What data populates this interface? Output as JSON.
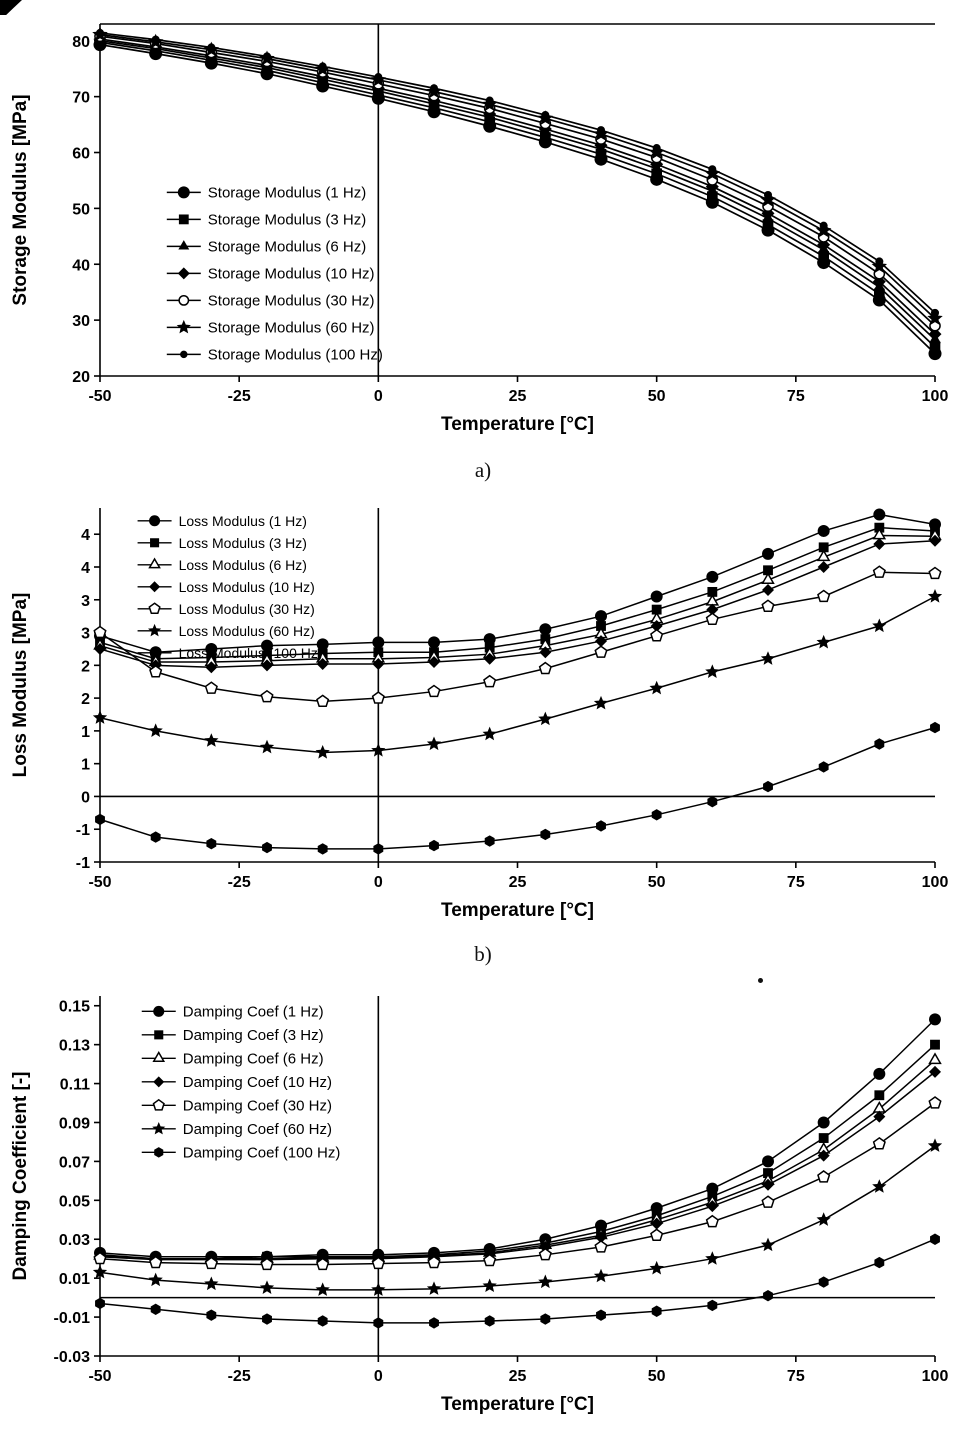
{
  "captions": {
    "a": "a)",
    "b": "b)"
  },
  "ink_color": "#000000",
  "background_color": "#ffffff",
  "chart_data": [
    {
      "id": "storage-modulus",
      "type": "line",
      "title": "",
      "xlabel": "Temperature [°C]",
      "ylabel": "Storage Modulus [MPa]",
      "xlim": [
        -50,
        100
      ],
      "ylim": [
        20,
        83
      ],
      "xticks": [
        -50,
        -25,
        0,
        25,
        50,
        75,
        100
      ],
      "yticks": {
        "values": [
          80,
          70,
          60,
          50,
          40,
          30,
          20
        ],
        "labels": [
          "80",
          "70",
          "60",
          "50",
          "40",
          "30",
          "20"
        ]
      },
      "grid": false,
      "box": "lbt",
      "legend": {
        "position": "center-left",
        "fx": 0.08,
        "fy": 0.44,
        "lh": 27,
        "fs": 15
      },
      "marker_size": 6.5,
      "line_width": 1.7,
      "x": [
        -50,
        -40,
        -30,
        -20,
        -10,
        0,
        10,
        20,
        30,
        40,
        50,
        60,
        70,
        80,
        90,
        100
      ],
      "series": [
        {
          "name": "Storage Modulus (1 Hz)",
          "marker": "circle",
          "values": [
            79.3,
            77.7,
            76.0,
            74.1,
            71.9,
            69.7,
            67.3,
            64.7,
            61.9,
            58.8,
            55.2,
            51.1,
            46.1,
            40.3,
            33.6,
            24.0
          ]
        },
        {
          "name": "Storage Modulus (3 Hz)",
          "marker": "square",
          "values": [
            79.7,
            78.2,
            76.5,
            74.7,
            72.5,
            70.3,
            68.0,
            65.5,
            62.7,
            59.7,
            56.2,
            52.1,
            47.1,
            41.4,
            34.7,
            25.2
          ]
        },
        {
          "name": "Storage Modulus (6 Hz)",
          "marker": "triangle",
          "values": [
            80.0,
            78.6,
            76.9,
            75.2,
            73.1,
            71.0,
            68.7,
            66.3,
            63.5,
            60.6,
            57.1,
            53.1,
            48.2,
            42.6,
            35.9,
            26.5
          ]
        },
        {
          "name": "Storage Modulus (10 Hz)",
          "marker": "diamond",
          "values": [
            80.3,
            78.9,
            77.3,
            75.6,
            73.6,
            71.5,
            69.3,
            66.9,
            64.2,
            61.3,
            57.9,
            53.9,
            49.1,
            43.5,
            36.9,
            27.5
          ]
        },
        {
          "name": "Storage Modulus (30 Hz)",
          "marker": "circle-open",
          "values": [
            80.8,
            79.5,
            77.9,
            76.3,
            74.4,
            72.3,
            70.2,
            67.9,
            65.2,
            62.4,
            59.1,
            55.1,
            50.4,
            44.9,
            38.3,
            29.0
          ]
        },
        {
          "name": "Storage Modulus (60 Hz)",
          "marker": "star",
          "values": [
            81.1,
            79.8,
            78.4,
            76.8,
            74.9,
            73.0,
            70.9,
            68.6,
            66.1,
            63.3,
            60.0,
            56.2,
            51.5,
            46.0,
            39.6,
            30.3
          ]
        },
        {
          "name": "Storage Modulus (100 Hz)",
          "marker": "dot",
          "values": [
            81.4,
            80.2,
            78.8,
            77.2,
            75.4,
            73.5,
            71.5,
            69.3,
            66.7,
            64.0,
            60.8,
            57.0,
            52.4,
            46.9,
            40.5,
            31.3
          ]
        }
      ]
    },
    {
      "id": "loss-modulus",
      "type": "line",
      "title": "",
      "xlabel": "Temperature [°C]",
      "ylabel": "Loss Modulus [MPa]",
      "xlim": [
        -50,
        100
      ],
      "ylim": [
        -1,
        4.4
      ],
      "xticks": [
        -50,
        -25,
        0,
        25,
        50,
        75,
        100
      ],
      "yticks": {
        "values": [
          4,
          3.5,
          3,
          2.5,
          2,
          1.5,
          1,
          0.5,
          0,
          -0.5,
          -1
        ],
        "labels": [
          "4",
          "4",
          "3",
          "3",
          "2",
          "2",
          "1",
          "1",
          "0",
          "-1",
          "-1"
        ]
      },
      "grid": false,
      "box": "lb",
      "legend": {
        "position": "top-left",
        "fx": 0.045,
        "fy": 0.005,
        "lh": 22,
        "fs": 14
      },
      "marker_size": 6,
      "line_width": 1.5,
      "x": [
        -50,
        -40,
        -30,
        -20,
        -10,
        0,
        10,
        20,
        30,
        40,
        50,
        60,
        70,
        80,
        90,
        100
      ],
      "series": [
        {
          "name": "Loss Modulus (1 Hz)",
          "marker": "circle",
          "values": [
            2.45,
            2.2,
            2.25,
            2.3,
            2.32,
            2.35,
            2.35,
            2.4,
            2.55,
            2.75,
            3.05,
            3.35,
            3.7,
            4.05,
            4.3,
            4.15
          ]
        },
        {
          "name": "Loss Modulus (3 Hz)",
          "marker": "square",
          "values": [
            2.35,
            2.1,
            2.12,
            2.15,
            2.18,
            2.2,
            2.2,
            2.27,
            2.4,
            2.6,
            2.85,
            3.12,
            3.45,
            3.8,
            4.1,
            4.05
          ]
        },
        {
          "name": "Loss Modulus (6 Hz)",
          "marker": "triangle-open",
          "values": [
            2.3,
            2.05,
            2.05,
            2.07,
            2.1,
            2.1,
            2.12,
            2.17,
            2.3,
            2.47,
            2.7,
            2.97,
            3.3,
            3.65,
            3.98,
            3.97
          ]
        },
        {
          "name": "Loss Modulus (10 Hz)",
          "marker": "diamond",
          "values": [
            2.25,
            2.0,
            1.97,
            2.0,
            2.02,
            2.02,
            2.05,
            2.1,
            2.2,
            2.37,
            2.6,
            2.85,
            3.15,
            3.5,
            3.85,
            3.9
          ]
        },
        {
          "name": "Loss Modulus (30 Hz)",
          "marker": "pentagon-open",
          "values": [
            2.5,
            1.9,
            1.65,
            1.52,
            1.45,
            1.5,
            1.6,
            1.75,
            1.95,
            2.2,
            2.45,
            2.7,
            2.9,
            3.05,
            3.42,
            3.4
          ]
        },
        {
          "name": "Loss Modulus (60 Hz)",
          "marker": "star",
          "values": [
            1.2,
            1.0,
            0.85,
            0.75,
            0.67,
            0.7,
            0.8,
            0.95,
            1.18,
            1.42,
            1.65,
            1.9,
            2.1,
            2.35,
            2.6,
            3.05
          ]
        },
        {
          "name": "Loss Modulus (100 Hz)",
          "marker": "hexagon",
          "values": [
            -0.35,
            -0.62,
            -0.72,
            -0.78,
            -0.8,
            -0.8,
            -0.75,
            -0.68,
            -0.58,
            -0.45,
            -0.28,
            -0.08,
            0.15,
            0.45,
            0.8,
            1.05
          ]
        }
      ]
    },
    {
      "id": "damping-coefficient",
      "type": "line",
      "title": "",
      "xlabel": "Temperature [°C]",
      "ylabel": "Damping Coefficient [-]",
      "xlim": [
        -50,
        100
      ],
      "ylim": [
        -0.03,
        0.155
      ],
      "xticks": [
        -50,
        -25,
        0,
        25,
        50,
        75,
        100
      ],
      "yticks": {
        "values": [
          0.15,
          0.13,
          0.11,
          0.09,
          0.07,
          0.05,
          0.03,
          0.01,
          -0.01,
          -0.03
        ],
        "labels": [
          "0.15",
          "0.13",
          "0.11",
          "0.09",
          "0.07",
          "0.05",
          "0.03",
          "0.01",
          "-0.01",
          "-0.03"
        ]
      },
      "grid": false,
      "box": "lb",
      "legend": {
        "position": "top-left",
        "fx": 0.05,
        "fy": 0.01,
        "lh": 23.5,
        "fs": 15
      },
      "marker_size": 6,
      "line_width": 1.5,
      "x": [
        -50,
        -40,
        -30,
        -20,
        -10,
        0,
        10,
        20,
        30,
        40,
        50,
        60,
        70,
        80,
        90,
        100
      ],
      "series": [
        {
          "name": "Damping Coef (1 Hz)",
          "marker": "circle",
          "values": [
            0.023,
            0.021,
            0.021,
            0.021,
            0.022,
            0.022,
            0.023,
            0.025,
            0.03,
            0.037,
            0.046,
            0.056,
            0.07,
            0.09,
            0.115,
            0.143
          ]
        },
        {
          "name": "Damping Coef (3 Hz)",
          "marker": "square",
          "values": [
            0.022,
            0.02,
            0.02,
            0.021,
            0.021,
            0.021,
            0.022,
            0.024,
            0.028,
            0.034,
            0.042,
            0.052,
            0.064,
            0.082,
            0.104,
            0.13
          ]
        },
        {
          "name": "Damping Coef (6 Hz)",
          "marker": "triangle-open",
          "values": [
            0.0215,
            0.02,
            0.02,
            0.02,
            0.0205,
            0.0205,
            0.0215,
            0.023,
            0.027,
            0.032,
            0.04,
            0.049,
            0.06,
            0.076,
            0.097,
            0.122
          ]
        },
        {
          "name": "Damping Coef (10 Hz)",
          "marker": "diamond",
          "values": [
            0.021,
            0.0195,
            0.0195,
            0.0195,
            0.02,
            0.02,
            0.021,
            0.0225,
            0.026,
            0.031,
            0.038,
            0.047,
            0.058,
            0.073,
            0.093,
            0.116
          ]
        },
        {
          "name": "Damping Coef (30 Hz)",
          "marker": "pentagon-open",
          "values": [
            0.02,
            0.018,
            0.0175,
            0.017,
            0.017,
            0.0175,
            0.018,
            0.019,
            0.022,
            0.026,
            0.032,
            0.039,
            0.049,
            0.062,
            0.079,
            0.1
          ]
        },
        {
          "name": "Damping Coef (60 Hz)",
          "marker": "star",
          "values": [
            0.013,
            0.009,
            0.007,
            0.005,
            0.004,
            0.004,
            0.0045,
            0.006,
            0.008,
            0.011,
            0.015,
            0.02,
            0.027,
            0.04,
            0.057,
            0.078
          ]
        },
        {
          "name": "Damping Coef (100 Hz)",
          "marker": "hexagon",
          "values": [
            -0.003,
            -0.006,
            -0.009,
            -0.011,
            -0.012,
            -0.013,
            -0.013,
            -0.012,
            -0.011,
            -0.009,
            -0.007,
            -0.004,
            0.001,
            0.008,
            0.018,
            0.03
          ]
        }
      ]
    }
  ]
}
